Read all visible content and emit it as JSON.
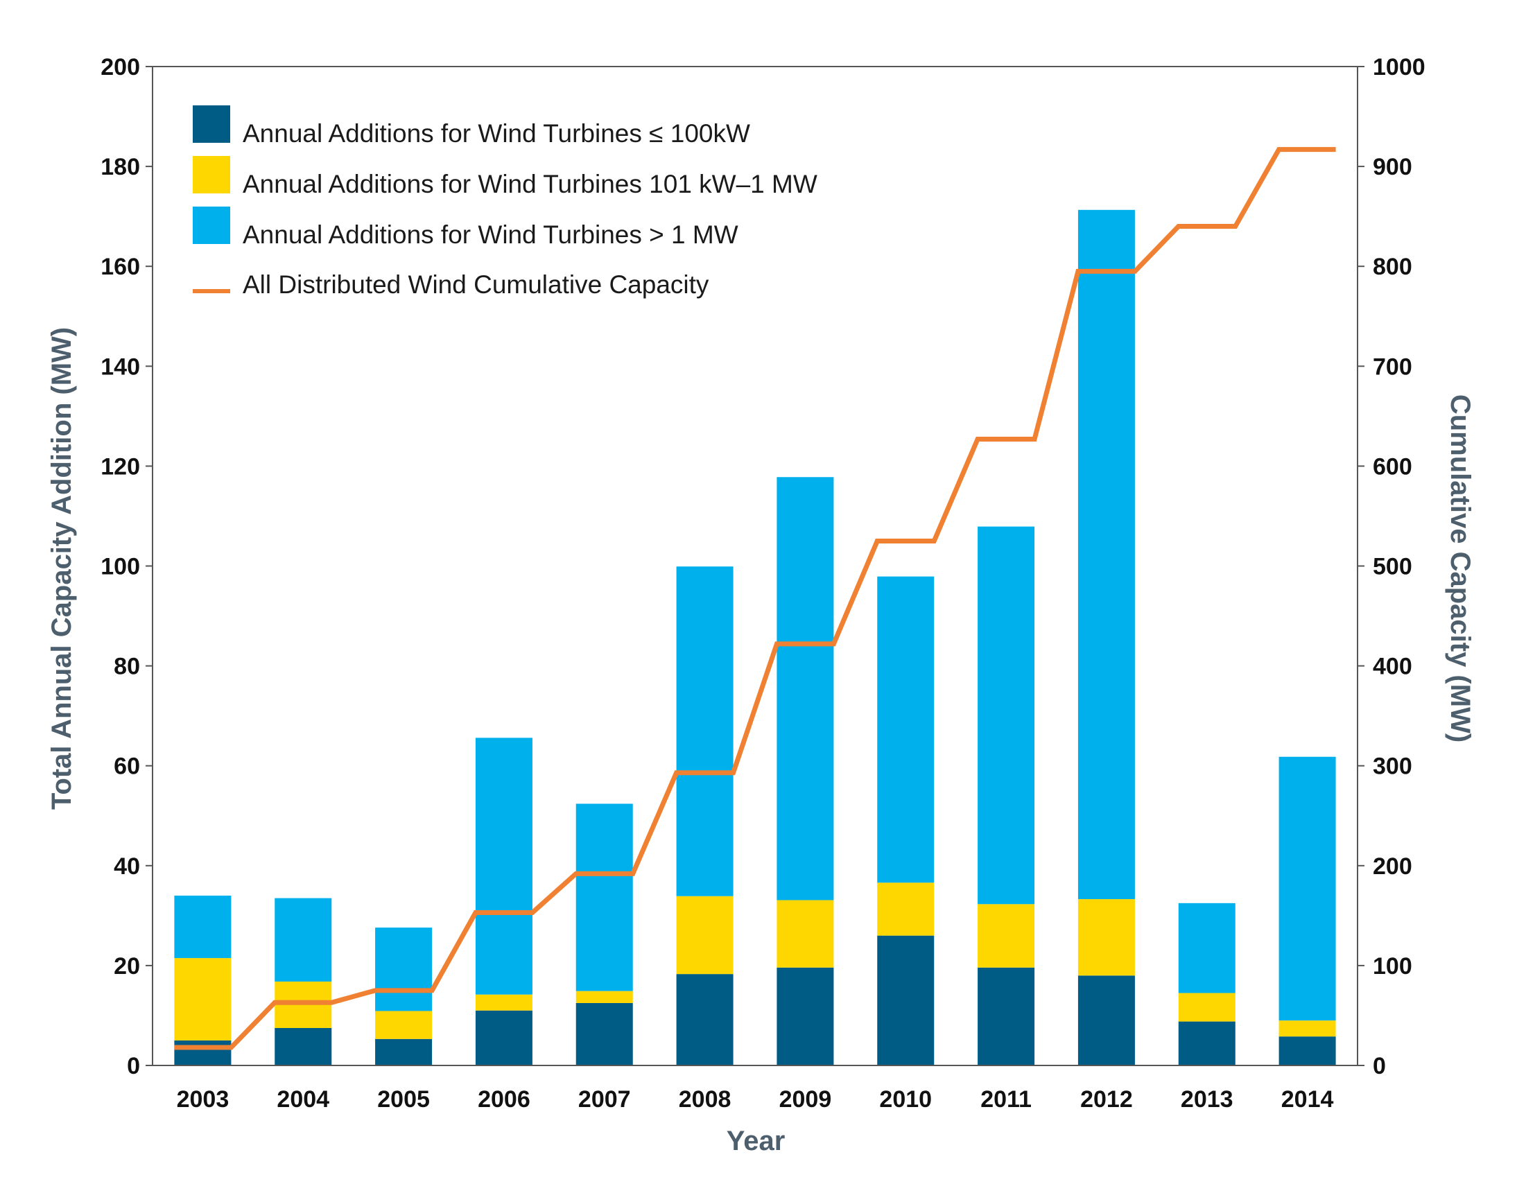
{
  "colors": {
    "small": "#005b85",
    "mid": "#ffd700",
    "large": "#00b0ec",
    "cumulative": "#f08032",
    "axis": "#555555",
    "axis_title": "#4d5e6c"
  },
  "chart_data": {
    "type": "bar",
    "stacked": true,
    "categories": [
      "2003",
      "2004",
      "2005",
      "2006",
      "2007",
      "2008",
      "2009",
      "2010",
      "2011",
      "2012",
      "2013",
      "2014"
    ],
    "series": [
      {
        "name": "Annual Additions for Wind Turbines ≤ 100kW",
        "color_key": "small",
        "values": [
          5,
          7.5,
          5.3,
          11,
          12.5,
          18.3,
          19.6,
          26,
          19.6,
          18,
          8.8,
          5.8
        ]
      },
      {
        "name": "Annual Additions for Wind Turbines 101 kW–1 MW",
        "color_key": "mid",
        "values": [
          16.5,
          9.3,
          5.6,
          3.2,
          2.4,
          15.6,
          13.5,
          10.6,
          12.7,
          15.3,
          5.7,
          3.2
        ]
      },
      {
        "name": "Annual Additions for Wind Turbines > 1 MW",
        "color_key": "large",
        "values": [
          12.5,
          16.7,
          16.7,
          51.4,
          37.5,
          66,
          84.7,
          61.3,
          75.6,
          138,
          18,
          52.8
        ]
      }
    ],
    "line_series": {
      "name": "All Distributed Wind Cumulative Capacity",
      "color_key": "cumulative",
      "axis": "right",
      "values": [
        18,
        63,
        75,
        153,
        192,
        293,
        422,
        525,
        627,
        795,
        840,
        917
      ]
    },
    "xlabel": "Year",
    "ylabel": "Total Annual Capacity Addition (MW)",
    "y2label": "Cumulative Capacity (MW)",
    "ylim": [
      0,
      200
    ],
    "y2lim": [
      0,
      1000
    ],
    "yticks": [
      0,
      20,
      40,
      60,
      80,
      100,
      120,
      140,
      160,
      180,
      200
    ],
    "y2ticks": [
      0,
      100,
      200,
      300,
      400,
      500,
      600,
      700,
      800,
      900,
      1000
    ],
    "grid": false,
    "legend_position": "top-left"
  }
}
